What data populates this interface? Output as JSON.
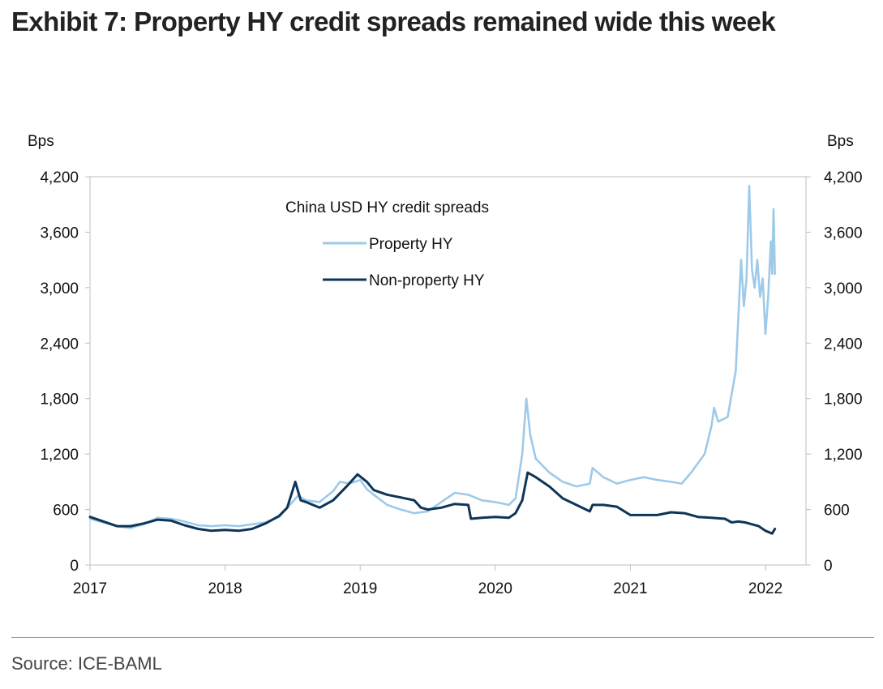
{
  "title": "Exhibit 7: Property HY credit spreads remained wide this week",
  "source": "Source: ICE-BAML",
  "chart_data": {
    "type": "line",
    "title": "China USD HY credit spreads",
    "ylabel_left": "Bps",
    "ylabel_right": "Bps",
    "ylim": [
      0,
      4200
    ],
    "yticks": [
      0,
      600,
      1200,
      1800,
      2400,
      3000,
      3600,
      4200
    ],
    "ytick_labels": [
      "0",
      "600",
      "1,200",
      "1,800",
      "2,400",
      "3,000",
      "3,600",
      "4,200"
    ],
    "xlim": [
      2017.0,
      2022.3
    ],
    "xticks": [
      2017,
      2018,
      2019,
      2020,
      2021,
      2022
    ],
    "xtick_labels": [
      "2017",
      "2018",
      "2019",
      "2020",
      "2021",
      "2022"
    ],
    "grid": false,
    "legend_position": "top-center",
    "series": [
      {
        "name": "Property HY",
        "color": "#9ecae9",
        "points": [
          [
            2017.0,
            500
          ],
          [
            2017.1,
            460
          ],
          [
            2017.2,
            420
          ],
          [
            2017.3,
            400
          ],
          [
            2017.4,
            440
          ],
          [
            2017.5,
            510
          ],
          [
            2017.6,
            500
          ],
          [
            2017.7,
            470
          ],
          [
            2017.8,
            430
          ],
          [
            2017.9,
            420
          ],
          [
            2018.0,
            430
          ],
          [
            2018.1,
            420
          ],
          [
            2018.2,
            440
          ],
          [
            2018.3,
            460
          ],
          [
            2018.4,
            520
          ],
          [
            2018.48,
            650
          ],
          [
            2018.54,
            750
          ],
          [
            2018.6,
            700
          ],
          [
            2018.7,
            680
          ],
          [
            2018.8,
            800
          ],
          [
            2018.85,
            900
          ],
          [
            2018.92,
            880
          ],
          [
            2019.0,
            920
          ],
          [
            2019.05,
            820
          ],
          [
            2019.1,
            760
          ],
          [
            2019.2,
            650
          ],
          [
            2019.3,
            600
          ],
          [
            2019.4,
            560
          ],
          [
            2019.5,
            580
          ],
          [
            2019.6,
            680
          ],
          [
            2019.7,
            780
          ],
          [
            2019.8,
            760
          ],
          [
            2019.9,
            700
          ],
          [
            2020.0,
            680
          ],
          [
            2020.1,
            650
          ],
          [
            2020.15,
            720
          ],
          [
            2020.2,
            1200
          ],
          [
            2020.23,
            1800
          ],
          [
            2020.26,
            1400
          ],
          [
            2020.3,
            1150
          ],
          [
            2020.4,
            1000
          ],
          [
            2020.5,
            900
          ],
          [
            2020.6,
            850
          ],
          [
            2020.7,
            880
          ],
          [
            2020.72,
            1050
          ],
          [
            2020.8,
            950
          ],
          [
            2020.9,
            880
          ],
          [
            2021.0,
            920
          ],
          [
            2021.1,
            950
          ],
          [
            2021.2,
            920
          ],
          [
            2021.3,
            900
          ],
          [
            2021.38,
            880
          ],
          [
            2021.45,
            1000
          ],
          [
            2021.55,
            1200
          ],
          [
            2021.6,
            1500
          ],
          [
            2021.62,
            1700
          ],
          [
            2021.65,
            1550
          ],
          [
            2021.72,
            1600
          ],
          [
            2021.78,
            2100
          ],
          [
            2021.8,
            2700
          ],
          [
            2021.82,
            3300
          ],
          [
            2021.84,
            2800
          ],
          [
            2021.86,
            3100
          ],
          [
            2021.88,
            4100
          ],
          [
            2021.9,
            3200
          ],
          [
            2021.92,
            3000
          ],
          [
            2021.94,
            3300
          ],
          [
            2021.96,
            2900
          ],
          [
            2021.98,
            3100
          ],
          [
            2022.0,
            2500
          ],
          [
            2022.02,
            2900
          ],
          [
            2022.04,
            3500
          ],
          [
            2022.05,
            3150
          ],
          [
            2022.06,
            3850
          ],
          [
            2022.07,
            3150
          ]
        ]
      },
      {
        "name": "Non-property HY",
        "color": "#0d3558",
        "points": [
          [
            2017.0,
            520
          ],
          [
            2017.1,
            470
          ],
          [
            2017.2,
            420
          ],
          [
            2017.3,
            420
          ],
          [
            2017.4,
            450
          ],
          [
            2017.5,
            490
          ],
          [
            2017.6,
            480
          ],
          [
            2017.7,
            430
          ],
          [
            2017.8,
            390
          ],
          [
            2017.9,
            370
          ],
          [
            2018.0,
            380
          ],
          [
            2018.1,
            370
          ],
          [
            2018.2,
            390
          ],
          [
            2018.3,
            450
          ],
          [
            2018.4,
            530
          ],
          [
            2018.46,
            620
          ],
          [
            2018.52,
            900
          ],
          [
            2018.56,
            700
          ],
          [
            2018.6,
            680
          ],
          [
            2018.7,
            620
          ],
          [
            2018.8,
            700
          ],
          [
            2018.9,
            850
          ],
          [
            2018.98,
            980
          ],
          [
            2019.05,
            900
          ],
          [
            2019.1,
            810
          ],
          [
            2019.2,
            760
          ],
          [
            2019.3,
            730
          ],
          [
            2019.4,
            700
          ],
          [
            2019.45,
            620
          ],
          [
            2019.5,
            600
          ],
          [
            2019.6,
            620
          ],
          [
            2019.7,
            660
          ],
          [
            2019.8,
            650
          ],
          [
            2019.82,
            500
          ],
          [
            2019.9,
            510
          ],
          [
            2020.0,
            520
          ],
          [
            2020.1,
            510
          ],
          [
            2020.15,
            560
          ],
          [
            2020.2,
            700
          ],
          [
            2020.24,
            1000
          ],
          [
            2020.3,
            950
          ],
          [
            2020.4,
            850
          ],
          [
            2020.5,
            720
          ],
          [
            2020.6,
            650
          ],
          [
            2020.7,
            580
          ],
          [
            2020.72,
            650
          ],
          [
            2020.8,
            650
          ],
          [
            2020.9,
            630
          ],
          [
            2021.0,
            540
          ],
          [
            2021.1,
            540
          ],
          [
            2021.2,
            540
          ],
          [
            2021.3,
            570
          ],
          [
            2021.4,
            560
          ],
          [
            2021.5,
            520
          ],
          [
            2021.6,
            510
          ],
          [
            2021.7,
            500
          ],
          [
            2021.75,
            460
          ],
          [
            2021.8,
            470
          ],
          [
            2021.85,
            460
          ],
          [
            2021.9,
            440
          ],
          [
            2021.95,
            420
          ],
          [
            2022.0,
            370
          ],
          [
            2022.05,
            340
          ],
          [
            2022.07,
            390
          ]
        ]
      }
    ]
  }
}
